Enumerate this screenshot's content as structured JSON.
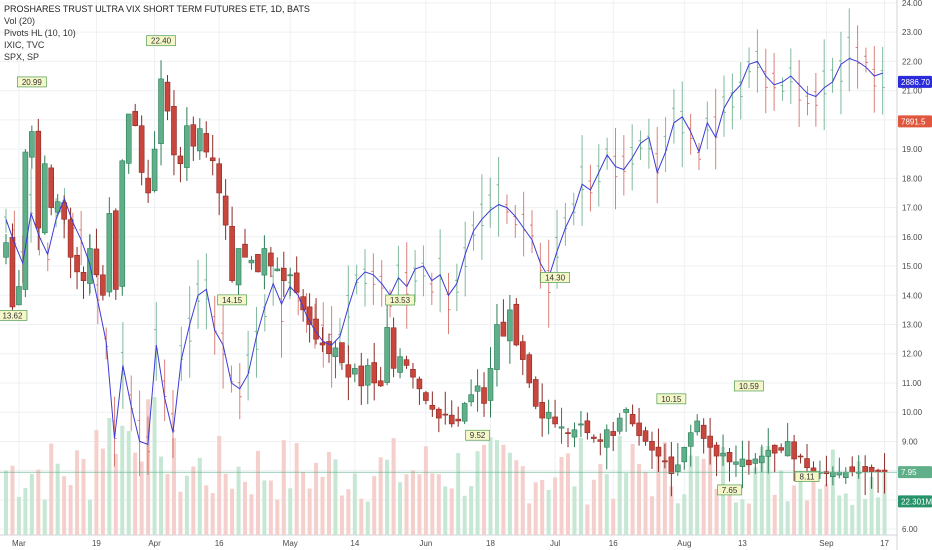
{
  "legend": {
    "title": "PROSHARES TRUST ULTRA VIX SHORT TERM FUTURES ETF, 1D, BATS",
    "vol": "Vol (20)",
    "pivots": "Pivots HL (10, 10)",
    "ixic": "IXIC, TVC",
    "spx": "SPX, SP"
  },
  "price_badges": [
    {
      "label": "2886.70",
      "value": 21.3,
      "color": "#2b2bd9",
      "text_color": "#ffffff"
    },
    {
      "label": "7891.5",
      "value": 19.95,
      "color": "#e0573d",
      "text_color": "#ffffff"
    },
    {
      "label": "7.95",
      "value": 7.95,
      "color": "#5fb08a",
      "text_color": "#ffffff"
    },
    {
      "label": "22.301M",
      "value": 6.95,
      "color": "#27936b",
      "text_color": "#ffffff"
    }
  ],
  "colors": {
    "up": "#5fb08a",
    "up_border": "#2e7d57",
    "down": "#c9463d",
    "down_border": "#8c2a25",
    "spx_line": "#3b3bd6",
    "ixic_up": "#58a37c",
    "ixic_down": "#d0584e",
    "pivot_bg": "#f5f7c9",
    "pivot_border": "#4f9d4f",
    "vol_up": "#c6e7d3",
    "vol_down": "#f4cfcc",
    "grid": "#eef0f3"
  },
  "chart_data": {
    "type": "candlestick",
    "title": "PROSHARES TRUST ULTRA VIX SHORT TERM FUTURES ETF, 1D, BATS",
    "y_axis": {
      "ticks": [
        "24.00",
        "23.00",
        "22.00",
        "21.00",
        "20.00",
        "19.00",
        "18.00",
        "17.00",
        "16.00",
        "15.00",
        "14.00",
        "13.00",
        "12.00",
        "11.00",
        "10.00",
        "9.00",
        "8.00",
        "7.00",
        "6.00"
      ],
      "range": [
        5.8,
        24.1
      ]
    },
    "x_axis": {
      "ticks": [
        {
          "label": "Mar",
          "i": 2
        },
        {
          "label": "19",
          "i": 14
        },
        {
          "label": "Apr",
          "i": 23
        },
        {
          "label": "16",
          "i": 33
        },
        {
          "label": "May",
          "i": 44
        },
        {
          "label": "14",
          "i": 54
        },
        {
          "label": "Jun",
          "i": 65
        },
        {
          "label": "18",
          "i": 75
        },
        {
          "label": "Jul",
          "i": 85
        },
        {
          "label": "16",
          "i": 94
        },
        {
          "label": "Aug",
          "i": 105
        },
        {
          "label": "13",
          "i": 114
        },
        {
          "label": "Sep",
          "i": 127
        },
        {
          "label": "17",
          "i": 136
        }
      ]
    },
    "uvxy_close": [
      15.8,
      13.6,
      14.3,
      18.9,
      19.6,
      16.3,
      18.5,
      17.0,
      17.2,
      16.6,
      15.3,
      14.8,
      14.5,
      15.6,
      14.7,
      14.0,
      16.8,
      14.2,
      18.6,
      20.2,
      19.8,
      18.2,
      17.5,
      19.0,
      21.4,
      20.3,
      18.8,
      18.5,
      19.8,
      19.1,
      19.7,
      18.9,
      18.6,
      17.5,
      16.4,
      14.5,
      15.6,
      15.3,
      15.2,
      14.8,
      15.6,
      15.0,
      14.9,
      14.5,
      14.7,
      14.1,
      13.5,
      13.0,
      12.5,
      12.3,
      12.0,
      12.2,
      11.7,
      11.2,
      11.5,
      10.9,
      11.6,
      11.0,
      10.9,
      12.9,
      11.5,
      11.9,
      11.6,
      11.2,
      10.8,
      10.4,
      10.1,
      9.8,
      9.9,
      9.6,
      9.7,
      10.3,
      10.6,
      10.9,
      10.3,
      11.5,
      13.0,
      12.6,
      13.5,
      12.3,
      11.8,
      11.0,
      10.2,
      9.8,
      10.0,
      9.6,
      9.5,
      9.3,
      9.4,
      9.6,
      9.3,
      9.1,
      9.0,
      9.4,
      9.2,
      9.8,
      10.1,
      9.6,
      9.2,
      9.0,
      8.7,
      8.5,
      8.3,
      7.9,
      8.2,
      8.8,
      9.3,
      9.7,
      9.1,
      8.8,
      8.5,
      8.6,
      8.3,
      8.3,
      8.4,
      8.2,
      8.4,
      8.5,
      8.7,
      8.6,
      8.7,
      9.0,
      8.4,
      8.5,
      8.1,
      7.8,
      7.95,
      7.9,
      7.95,
      7.95,
      7.95,
      7.95,
      7.95,
      7.95,
      7.95,
      7.95,
      7.95
    ],
    "spx_overlay": [
      16.6,
      15.8,
      15.1,
      16.8,
      16.0,
      15.4,
      16.6,
      17.3,
      16.5,
      15.9,
      15.1,
      13.8,
      12.4,
      9.1,
      11.6,
      10.2,
      9.0,
      8.9,
      12.3,
      10.5,
      9.3,
      11.8,
      13.0,
      14.0,
      14.2,
      12.8,
      12.3,
      11.0,
      10.8,
      11.3,
      12.6,
      13.6,
      14.4,
      13.7,
      14.3,
      14.0,
      13.3,
      12.8,
      12.4,
      12.3,
      12.6,
      13.6,
      14.5,
      14.8,
      14.7,
      14.4,
      14.0,
      14.6,
      14.3,
      14.9,
      15.0,
      14.5,
      14.7,
      14.0,
      14.4,
      15.4,
      16.2,
      16.6,
      16.9,
      17.1,
      17.0,
      16.7,
      16.3,
      15.9,
      15.1,
      14.6,
      15.5,
      16.3,
      16.9,
      17.8,
      17.6,
      18.2,
      18.8,
      18.4,
      18.3,
      18.7,
      19.2,
      19.4,
      18.2,
      18.9,
      19.9,
      20.1,
      19.6,
      18.9,
      19.9,
      19.4,
      20.4,
      20.9,
      21.2,
      21.9,
      22.0,
      21.5,
      21.2,
      21.3,
      21.5,
      21.2,
      20.9,
      20.8,
      21.1,
      21.3,
      21.9,
      22.1,
      22.0,
      21.8,
      21.5,
      21.6
    ],
    "spx_last": "2886.70",
    "ixic_last": "7891.5",
    "volume_last": "22.301M",
    "pivots": [
      {
        "label": "20.99",
        "i": 4,
        "value": 20.99,
        "pos": "high"
      },
      {
        "label": "22.40",
        "i": 24,
        "value": 22.4,
        "pos": "high"
      },
      {
        "label": "14.15",
        "i": 35,
        "value": 14.15,
        "pos": "low"
      },
      {
        "label": "13.53",
        "i": 61,
        "value": 13.53,
        "pos": "high"
      },
      {
        "label": "9.52",
        "i": 73,
        "value": 9.52,
        "pos": "low"
      },
      {
        "label": "14.30",
        "i": 85,
        "value": 14.3,
        "pos": "high"
      },
      {
        "label": "10.15",
        "i": 103,
        "value": 10.15,
        "pos": "high"
      },
      {
        "label": "10.59",
        "i": 115,
        "value": 10.59,
        "pos": "high"
      },
      {
        "label": "7.65",
        "i": 112,
        "value": 7.65,
        "pos": "low"
      },
      {
        "label": "8.11",
        "i": 124,
        "value": 8.11,
        "pos": "low"
      },
      {
        "label": "13.62",
        "i": 1,
        "value": 13.62,
        "pos": "low"
      }
    ]
  }
}
